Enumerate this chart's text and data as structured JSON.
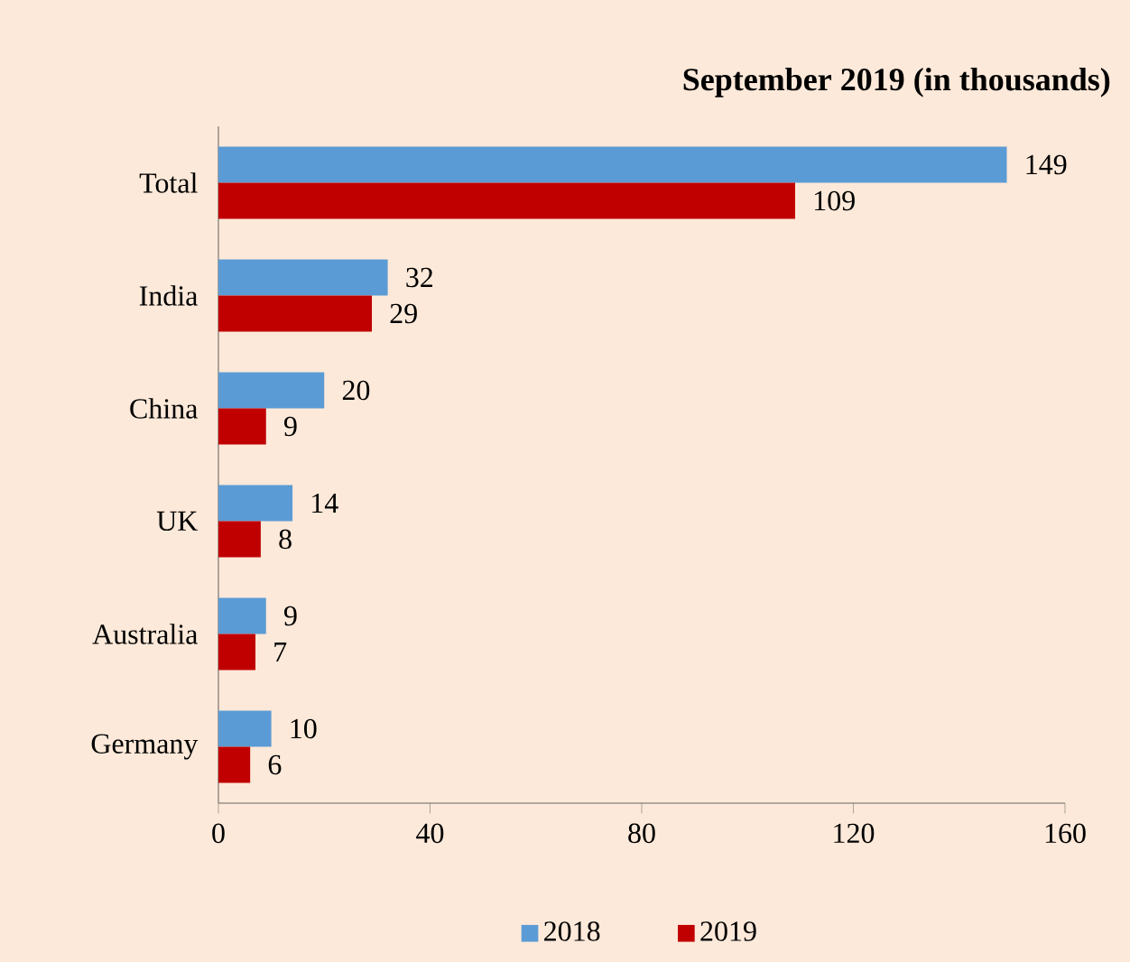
{
  "chart_data": {
    "type": "bar",
    "orientation": "horizontal",
    "title": "September 2019 (in thousands)",
    "categories": [
      "Total",
      "India",
      "China",
      "UK",
      "Australia",
      "Germany"
    ],
    "series": [
      {
        "name": "2018",
        "color": "#5b9bd5",
        "values": [
          149,
          32,
          20,
          14,
          9,
          10
        ]
      },
      {
        "name": "2019",
        "color": "#c00000",
        "values": [
          109,
          29,
          9,
          8,
          7,
          6
        ]
      }
    ],
    "xlim": [
      0,
      160
    ],
    "xticks": [
      0,
      40,
      80,
      120,
      160
    ],
    "data_labels": true,
    "legend": "bottom",
    "grid": false
  }
}
